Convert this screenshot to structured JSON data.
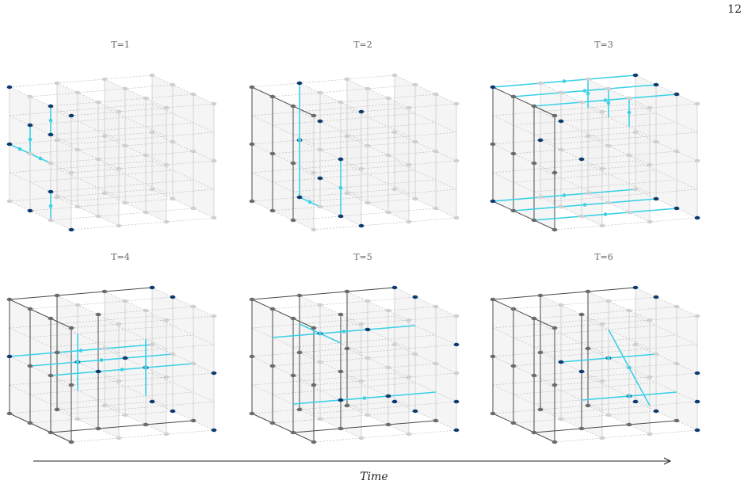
{
  "page_number": "12",
  "axis_label": "Time",
  "colors": {
    "background_plane": "#f1f1f1",
    "inactive_node": "#cfcfcf",
    "inactive_edge": "#bdbdbd",
    "processed_node": "#6b6b6b",
    "processed_edge": "#4a4a4a",
    "frontier_node": "#0b3a6e",
    "active_edge": "#3cd0e6"
  },
  "panels": [
    {
      "title": "T=1"
    },
    {
      "title": "T=2"
    },
    {
      "title": "T=3"
    },
    {
      "title": "T=4"
    },
    {
      "title": "T=5"
    },
    {
      "title": "T=6"
    }
  ]
}
